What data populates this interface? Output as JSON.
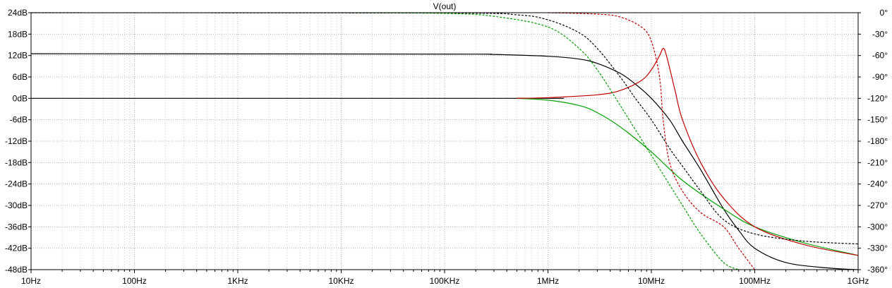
{
  "chart_data": {
    "type": "line",
    "title": "V(out)",
    "x_scale": "log",
    "xlim": [
      10,
      1000000000
    ],
    "x_ticks": [
      {
        "value": 10,
        "label": "10Hz"
      },
      {
        "value": 100,
        "label": "100Hz"
      },
      {
        "value": 1000,
        "label": "1KHz"
      },
      {
        "value": 10000,
        "label": "10KHz"
      },
      {
        "value": 100000,
        "label": "100KHz"
      },
      {
        "value": 1000000,
        "label": "1MHz"
      },
      {
        "value": 10000000,
        "label": "10MHz"
      },
      {
        "value": 100000000,
        "label": "100MHz"
      },
      {
        "value": 1000000000,
        "label": "1GHz"
      }
    ],
    "y_left": {
      "unit": "dB",
      "ylim": [
        -48,
        24
      ],
      "ticks": [
        {
          "value": 24,
          "label": "24dB"
        },
        {
          "value": 18,
          "label": "18dB"
        },
        {
          "value": 12,
          "label": "12dB"
        },
        {
          "value": 6,
          "label": "6dB"
        },
        {
          "value": 0,
          "label": "0dB"
        },
        {
          "value": -6,
          "label": "-6dB"
        },
        {
          "value": -12,
          "label": "-12dB"
        },
        {
          "value": -18,
          "label": "-18dB"
        },
        {
          "value": -24,
          "label": "-24dB"
        },
        {
          "value": -30,
          "label": "-30dB"
        },
        {
          "value": -36,
          "label": "-36dB"
        },
        {
          "value": -42,
          "label": "-42dB"
        },
        {
          "value": -48,
          "label": "-48dB"
        }
      ]
    },
    "y_right": {
      "unit": "°",
      "ylim": [
        -360,
        0
      ],
      "ticks": [
        {
          "value": 0,
          "label": "0°"
        },
        {
          "value": -30,
          "label": "-30°"
        },
        {
          "value": -60,
          "label": "-60°"
        },
        {
          "value": -90,
          "label": "-90°"
        },
        {
          "value": -120,
          "label": "-120°"
        },
        {
          "value": -150,
          "label": "-150°"
        },
        {
          "value": -180,
          "label": "-180°"
        },
        {
          "value": -210,
          "label": "-210°"
        },
        {
          "value": -240,
          "label": "-240°"
        },
        {
          "value": -270,
          "label": "-270°"
        },
        {
          "value": -300,
          "label": "-300°"
        },
        {
          "value": -330,
          "label": "-330°"
        },
        {
          "value": -360,
          "label": "-360°"
        }
      ]
    },
    "grid": true,
    "series": [
      {
        "kind": "magnitude",
        "color": "#000000",
        "dashed": false,
        "points": [
          [
            10,
            12.5
          ],
          [
            100000,
            12.4
          ],
          [
            300000,
            12.3
          ],
          [
            1000000,
            11.8
          ],
          [
            2000000,
            11
          ],
          [
            3000000,
            9.8
          ],
          [
            5000000,
            7
          ],
          [
            7000000,
            4
          ],
          [
            10000000,
            0
          ],
          [
            15000000,
            -6
          ],
          [
            20000000,
            -12
          ],
          [
            30000000,
            -20
          ],
          [
            50000000,
            -31
          ],
          [
            70000000,
            -37
          ],
          [
            100000000,
            -42
          ],
          [
            200000000,
            -46
          ],
          [
            500000000,
            -47.5
          ],
          [
            1000000000,
            -48
          ]
        ]
      },
      {
        "kind": "magnitude",
        "color": "#000000",
        "dashed": false,
        "points": [
          [
            10,
            0
          ],
          [
            500000,
            0
          ],
          [
            1000000,
            0
          ]
        ]
      },
      {
        "kind": "magnitude",
        "color": "#00a000",
        "dashed": false,
        "points": [
          [
            500000,
            0
          ],
          [
            1000000,
            -0.5
          ],
          [
            2000000,
            -2
          ],
          [
            3000000,
            -4
          ],
          [
            5000000,
            -8
          ],
          [
            10000000,
            -15
          ],
          [
            20000000,
            -23
          ],
          [
            50000000,
            -31
          ],
          [
            100000000,
            -36
          ],
          [
            300000000,
            -40.5
          ],
          [
            1000000000,
            -44
          ]
        ]
      },
      {
        "kind": "magnitude",
        "color": "#c00000",
        "dashed": false,
        "points": [
          [
            500000,
            0
          ],
          [
            1000000,
            0.2
          ],
          [
            3000000,
            1
          ],
          [
            5000000,
            2.2
          ],
          [
            8000000,
            5
          ],
          [
            10000000,
            8
          ],
          [
            12000000,
            12
          ],
          [
            13000000,
            14
          ],
          [
            14000000,
            12
          ],
          [
            17000000,
            2
          ],
          [
            20000000,
            -6
          ],
          [
            30000000,
            -18
          ],
          [
            50000000,
            -28
          ],
          [
            100000000,
            -36
          ],
          [
            300000000,
            -41
          ],
          [
            1000000000,
            -44
          ]
        ]
      },
      {
        "kind": "phase",
        "color": "#000000",
        "dashed": true,
        "points": [
          [
            10,
            0
          ],
          [
            100000,
            -0.5
          ],
          [
            500000,
            -3
          ],
          [
            1000000,
            -10
          ],
          [
            2000000,
            -28
          ],
          [
            3000000,
            -50
          ],
          [
            5000000,
            -90
          ],
          [
            7000000,
            -120
          ],
          [
            10000000,
            -150
          ],
          [
            15000000,
            -190
          ],
          [
            20000000,
            -215
          ],
          [
            30000000,
            -250
          ],
          [
            50000000,
            -290
          ],
          [
            100000000,
            -310
          ],
          [
            300000000,
            -320
          ],
          [
            1000000000,
            -324
          ]
        ]
      },
      {
        "kind": "phase",
        "color": "#00a000",
        "dashed": true,
        "points": [
          [
            10000,
            0
          ],
          [
            100000,
            -1
          ],
          [
            300000,
            -5
          ],
          [
            1000000,
            -20
          ],
          [
            2000000,
            -50
          ],
          [
            3000000,
            -80
          ],
          [
            5000000,
            -130
          ],
          [
            10000000,
            -200
          ],
          [
            20000000,
            -270
          ],
          [
            30000000,
            -310
          ],
          [
            50000000,
            -350
          ],
          [
            70000000,
            -360
          ]
        ]
      },
      {
        "kind": "phase",
        "color": "#c00000",
        "dashed": true,
        "points": [
          [
            1000000,
            0
          ],
          [
            3000000,
            -2
          ],
          [
            5000000,
            -6
          ],
          [
            8000000,
            -20
          ],
          [
            10000000,
            -40
          ],
          [
            12000000,
            -90
          ],
          [
            13000000,
            -150
          ],
          [
            15000000,
            -210
          ],
          [
            20000000,
            -250
          ],
          [
            30000000,
            -280
          ],
          [
            50000000,
            -300
          ],
          [
            70000000,
            -330
          ],
          [
            100000000,
            -360
          ]
        ]
      }
    ]
  }
}
